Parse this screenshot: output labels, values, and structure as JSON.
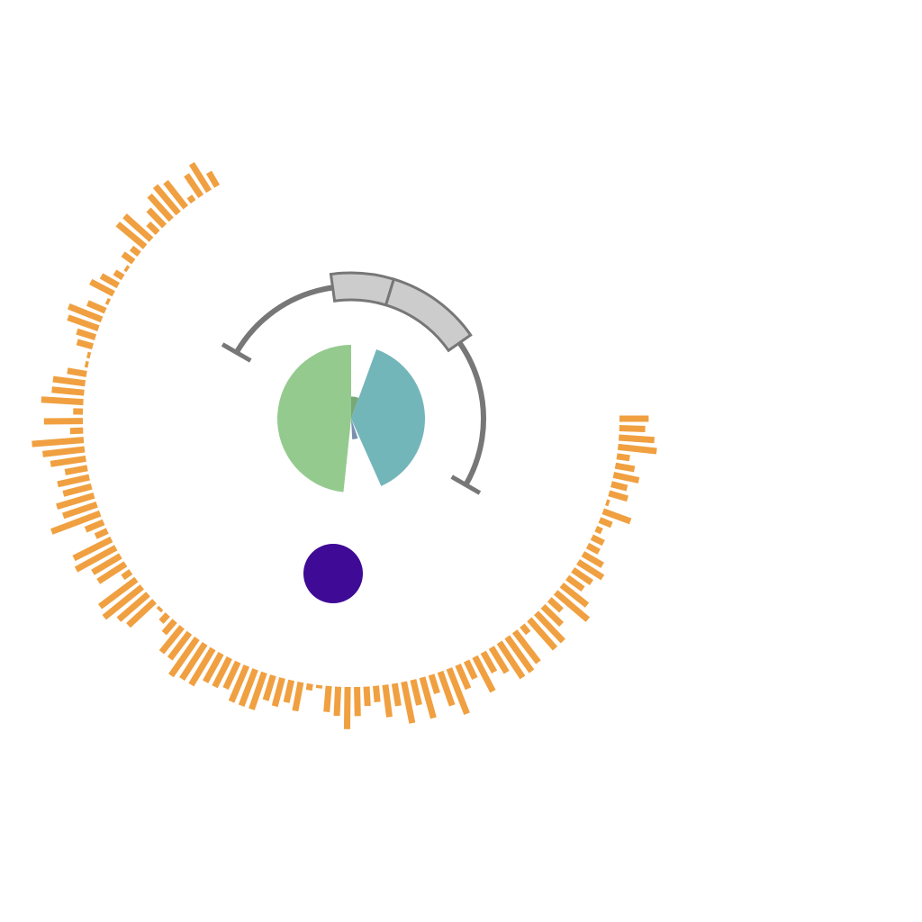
{
  "chart_data": [
    {
      "type": "bar",
      "layout": "radial",
      "ticks_printed": false,
      "color": "#F0A040",
      "values": [
        5,
        10,
        8,
        2,
        10,
        11,
        10,
        7,
        4,
        11,
        11,
        3,
        4,
        1,
        3,
        6,
        8,
        1,
        6,
        11,
        10,
        6,
        5,
        1,
        1,
        6,
        10,
        10,
        13,
        3,
        12,
        4,
        16,
        13,
        11,
        7,
        10,
        9,
        12,
        11,
        16,
        6,
        4,
        13,
        14,
        10,
        10,
        3,
        14,
        15,
        12,
        11,
        1,
        3,
        5,
        10,
        10,
        14,
        13,
        13,
        10,
        10,
        9,
        12,
        12,
        12,
        8,
        9,
        7,
        9,
        2,
        1,
        8,
        9,
        13,
        9,
        6,
        5,
        10,
        7,
        13,
        8,
        13,
        6,
        11,
        15,
        8,
        6,
        12,
        7,
        9,
        13,
        13,
        12,
        3,
        12,
        12,
        8,
        5,
        13,
        10,
        6,
        7,
        9,
        7,
        4,
        4,
        2,
        4,
        9,
        1,
        6,
        5,
        8,
        6,
        4,
        12,
        11,
        8,
        9
      ]
    },
    {
      "type": "pie",
      "variant": "rose",
      "slices": [
        {
          "angle": 20,
          "radius": 0.3,
          "color": "#78A878"
        },
        {
          "angle": 136,
          "radius": 1.0,
          "color": "#73B6BA"
        },
        {
          "angle": 5,
          "radius": 0.0,
          "color": "#73B6BA"
        },
        {
          "angle": 16,
          "radius": 0.28,
          "color": "#7B8FB0"
        },
        {
          "angle": 9,
          "radius": 0.0,
          "color": "#7B8FB0"
        },
        {
          "angle": 174,
          "radius": 1.0,
          "color": "#94CA8E"
        }
      ]
    },
    {
      "type": "gauge",
      "variant": "arc-with-error-caps",
      "arc_color": "#777777",
      "highlight_fill": "#CCCCCC",
      "highlight_stroke": "#777777",
      "arc_degrees": [
        -60,
        120
      ],
      "highlight_segments": [
        {
          "from_deg": -8,
          "to_deg": 17
        },
        {
          "from_deg": 17,
          "to_deg": 55
        }
      ]
    },
    {
      "type": "scatter",
      "points": [
        {
          "x": 0,
          "y": 0,
          "color": "#3F0A96"
        }
      ]
    }
  ]
}
